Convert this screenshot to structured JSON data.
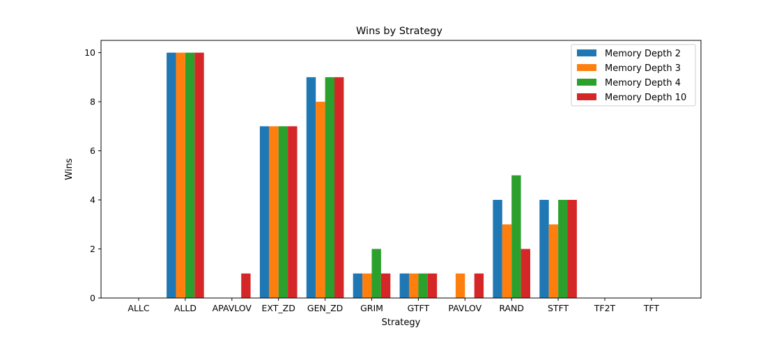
{
  "chart_data": {
    "type": "bar",
    "title": "Wins by Strategy",
    "xlabel": "Strategy",
    "ylabel": "Wins",
    "categories": [
      "ALLC",
      "ALLD",
      "APAVLOV",
      "EXT_ZD",
      "GEN_ZD",
      "GRIM",
      "GTFT",
      "PAVLOV",
      "RAND",
      "STFT",
      "TF2T",
      "TFT"
    ],
    "series": [
      {
        "name": "Memory Depth 2",
        "color": "#1f77b4",
        "values": [
          0,
          10,
          0,
          7,
          9,
          1,
          1,
          0,
          4,
          4,
          0,
          0
        ]
      },
      {
        "name": "Memory Depth 3",
        "color": "#ff7f0e",
        "values": [
          0,
          10,
          0,
          7,
          8,
          1,
          1,
          1,
          3,
          3,
          0,
          0
        ]
      },
      {
        "name": "Memory Depth 4",
        "color": "#2ca02c",
        "values": [
          0,
          10,
          0,
          7,
          9,
          2,
          1,
          0,
          5,
          4,
          0,
          0
        ]
      },
      {
        "name": "Memory Depth 10",
        "color": "#d62728",
        "values": [
          0,
          10,
          1,
          7,
          9,
          1,
          1,
          1,
          2,
          4,
          0,
          0
        ]
      }
    ],
    "ylim": [
      0,
      10.5
    ],
    "yticks": [
      0,
      2,
      4,
      6,
      8,
      10
    ],
    "grid": false,
    "legend_position": "top-right"
  }
}
